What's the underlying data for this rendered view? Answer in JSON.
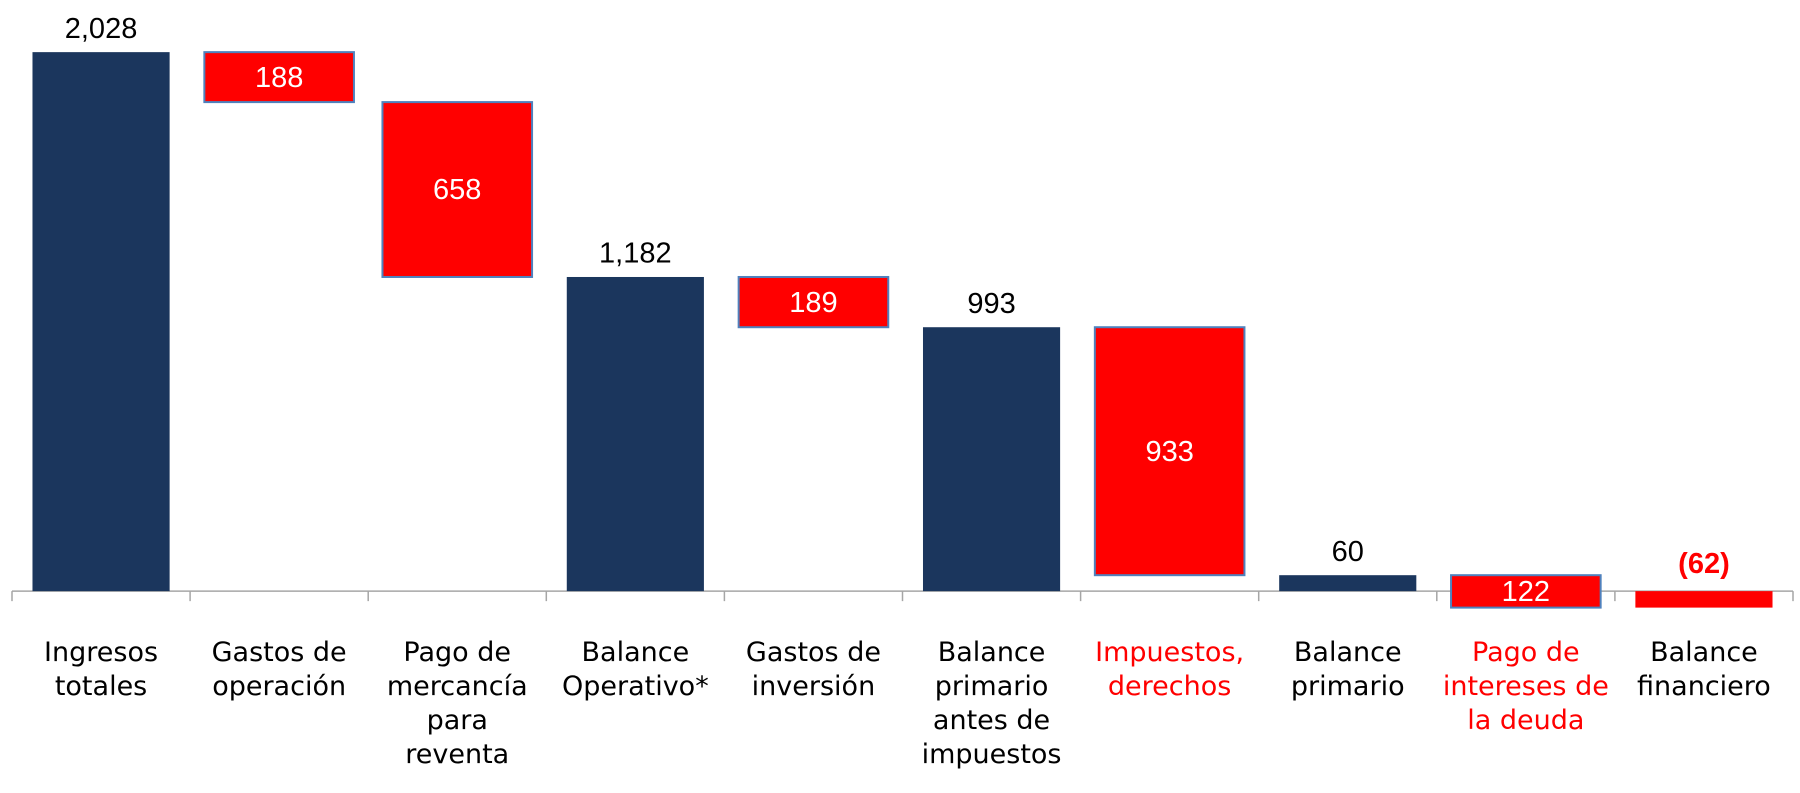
{
  "chart_data": {
    "type": "waterfall",
    "categories": [
      "Ingresos totales",
      "Gastos de operación",
      "Pago de mercancía para reventa",
      "Balance Operativo*",
      "Gastos de inversión",
      "Balance primario antes de impuestos",
      "Impuestos, derechos",
      "Balance primario",
      "Pago de intereses de la deuda",
      "Balance financiero"
    ],
    "values": [
      2028,
      -188,
      -658,
      1182,
      -189,
      993,
      -933,
      60,
      -122,
      -62
    ],
    "value_labels": [
      "2,028",
      "188",
      "658",
      "1,182",
      "189",
      "993",
      "933",
      "60",
      "122",
      "(62)"
    ],
    "totals": [
      true,
      false,
      false,
      true,
      false,
      true,
      false,
      true,
      false,
      true
    ],
    "total_color": "#1b365d",
    "decrease_color": "#ff0000",
    "category_colors": [
      "#000000",
      "#000000",
      "#000000",
      "#000000",
      "#000000",
      "#000000",
      "#ff0000",
      "#000000",
      "#ff0000",
      "#000000"
    ],
    "ylim": [
      -150,
      2100
    ]
  }
}
